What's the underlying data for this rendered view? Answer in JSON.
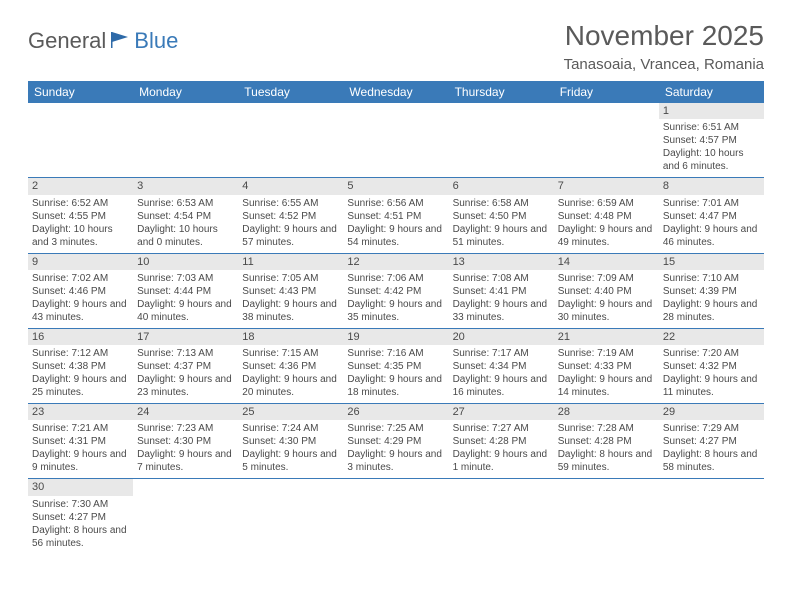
{
  "logo": {
    "part1": "General",
    "part2": "Blue"
  },
  "title": "November 2025",
  "location": "Tanasoaia, Vrancea, Romania",
  "dayNames": [
    "Sunday",
    "Monday",
    "Tuesday",
    "Wednesday",
    "Thursday",
    "Friday",
    "Saturday"
  ],
  "colors": {
    "header_bg": "#3a7ab8",
    "header_text": "#ffffff",
    "daynum_bg": "#e8e8e8",
    "text": "#4a4a4a",
    "title_text": "#5a5a5a",
    "row_border": "#3a7ab8"
  },
  "weeks": [
    [
      null,
      null,
      null,
      null,
      null,
      null,
      {
        "n": "1",
        "sr": "6:51 AM",
        "ss": "4:57 PM",
        "dl": "10 hours and 6 minutes."
      }
    ],
    [
      {
        "n": "2",
        "sr": "6:52 AM",
        "ss": "4:55 PM",
        "dl": "10 hours and 3 minutes."
      },
      {
        "n": "3",
        "sr": "6:53 AM",
        "ss": "4:54 PM",
        "dl": "10 hours and 0 minutes."
      },
      {
        "n": "4",
        "sr": "6:55 AM",
        "ss": "4:52 PM",
        "dl": "9 hours and 57 minutes."
      },
      {
        "n": "5",
        "sr": "6:56 AM",
        "ss": "4:51 PM",
        "dl": "9 hours and 54 minutes."
      },
      {
        "n": "6",
        "sr": "6:58 AM",
        "ss": "4:50 PM",
        "dl": "9 hours and 51 minutes."
      },
      {
        "n": "7",
        "sr": "6:59 AM",
        "ss": "4:48 PM",
        "dl": "9 hours and 49 minutes."
      },
      {
        "n": "8",
        "sr": "7:01 AM",
        "ss": "4:47 PM",
        "dl": "9 hours and 46 minutes."
      }
    ],
    [
      {
        "n": "9",
        "sr": "7:02 AM",
        "ss": "4:46 PM",
        "dl": "9 hours and 43 minutes."
      },
      {
        "n": "10",
        "sr": "7:03 AM",
        "ss": "4:44 PM",
        "dl": "9 hours and 40 minutes."
      },
      {
        "n": "11",
        "sr": "7:05 AM",
        "ss": "4:43 PM",
        "dl": "9 hours and 38 minutes."
      },
      {
        "n": "12",
        "sr": "7:06 AM",
        "ss": "4:42 PM",
        "dl": "9 hours and 35 minutes."
      },
      {
        "n": "13",
        "sr": "7:08 AM",
        "ss": "4:41 PM",
        "dl": "9 hours and 33 minutes."
      },
      {
        "n": "14",
        "sr": "7:09 AM",
        "ss": "4:40 PM",
        "dl": "9 hours and 30 minutes."
      },
      {
        "n": "15",
        "sr": "7:10 AM",
        "ss": "4:39 PM",
        "dl": "9 hours and 28 minutes."
      }
    ],
    [
      {
        "n": "16",
        "sr": "7:12 AM",
        "ss": "4:38 PM",
        "dl": "9 hours and 25 minutes."
      },
      {
        "n": "17",
        "sr": "7:13 AM",
        "ss": "4:37 PM",
        "dl": "9 hours and 23 minutes."
      },
      {
        "n": "18",
        "sr": "7:15 AM",
        "ss": "4:36 PM",
        "dl": "9 hours and 20 minutes."
      },
      {
        "n": "19",
        "sr": "7:16 AM",
        "ss": "4:35 PM",
        "dl": "9 hours and 18 minutes."
      },
      {
        "n": "20",
        "sr": "7:17 AM",
        "ss": "4:34 PM",
        "dl": "9 hours and 16 minutes."
      },
      {
        "n": "21",
        "sr": "7:19 AM",
        "ss": "4:33 PM",
        "dl": "9 hours and 14 minutes."
      },
      {
        "n": "22",
        "sr": "7:20 AM",
        "ss": "4:32 PM",
        "dl": "9 hours and 11 minutes."
      }
    ],
    [
      {
        "n": "23",
        "sr": "7:21 AM",
        "ss": "4:31 PM",
        "dl": "9 hours and 9 minutes."
      },
      {
        "n": "24",
        "sr": "7:23 AM",
        "ss": "4:30 PM",
        "dl": "9 hours and 7 minutes."
      },
      {
        "n": "25",
        "sr": "7:24 AM",
        "ss": "4:30 PM",
        "dl": "9 hours and 5 minutes."
      },
      {
        "n": "26",
        "sr": "7:25 AM",
        "ss": "4:29 PM",
        "dl": "9 hours and 3 minutes."
      },
      {
        "n": "27",
        "sr": "7:27 AM",
        "ss": "4:28 PM",
        "dl": "9 hours and 1 minute."
      },
      {
        "n": "28",
        "sr": "7:28 AM",
        "ss": "4:28 PM",
        "dl": "8 hours and 59 minutes."
      },
      {
        "n": "29",
        "sr": "7:29 AM",
        "ss": "4:27 PM",
        "dl": "8 hours and 58 minutes."
      }
    ],
    [
      {
        "n": "30",
        "sr": "7:30 AM",
        "ss": "4:27 PM",
        "dl": "8 hours and 56 minutes."
      },
      null,
      null,
      null,
      null,
      null,
      null
    ]
  ]
}
